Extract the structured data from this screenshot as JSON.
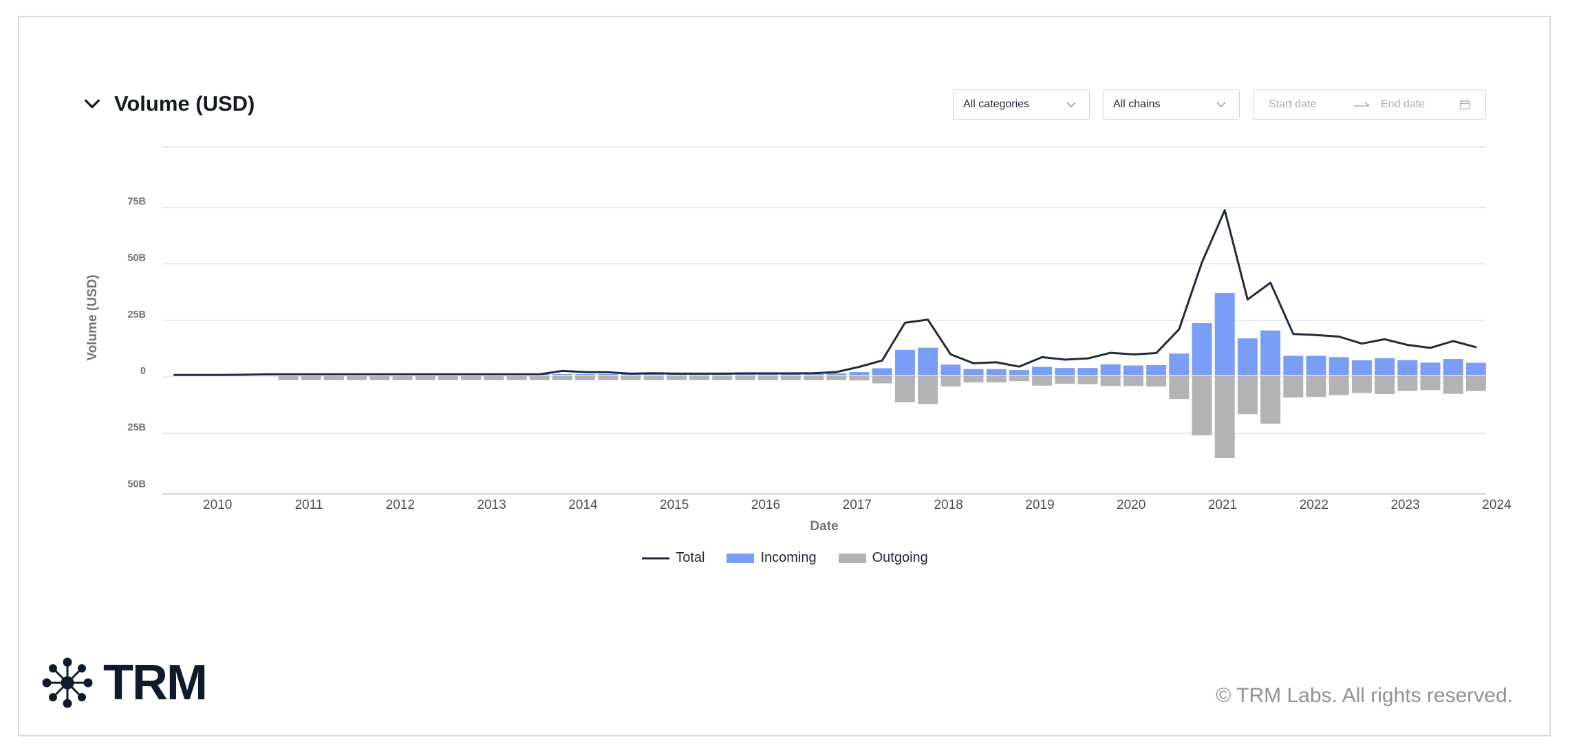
{
  "page": {
    "title": "Volume (USD)",
    "filters": {
      "category": "All categories",
      "chain": "All chains",
      "start_placeholder": "Start date",
      "end_placeholder": "End date"
    },
    "copyright": "© TRM Labs. All rights reserved.",
    "logo_text": "TRM"
  },
  "colors": {
    "incoming": "#7a9ef5",
    "outgoing": "#b3b3b6",
    "total": "#202a38",
    "grid": "#e4e6e9"
  },
  "chart_data": {
    "type": "bar",
    "ylabel": "Volume (USD)",
    "xlabel": "Date",
    "ylim": [
      -50,
      75
    ],
    "ytick_values": [
      75,
      50,
      25,
      0,
      -25,
      -50
    ],
    "ytick_labels": [
      "75B",
      "50B",
      "25B",
      "0",
      "25B",
      "50B"
    ],
    "xtick_labels": [
      "2010",
      "2011",
      "2012",
      "2013",
      "2014",
      "2015",
      "2016",
      "2017",
      "2018",
      "2019",
      "2020",
      "2021",
      "2022",
      "2023",
      "2024"
    ],
    "x_start": 2009.75,
    "x_step": 0.25,
    "legend": [
      "Total",
      "Incoming",
      "Outgoing"
    ],
    "legend_position": "bottom",
    "x": [
      "2009-10",
      "2010-01",
      "2010-04",
      "2010-07",
      "2010-10",
      "2011-01",
      "2011-04",
      "2011-07",
      "2011-10",
      "2012-01",
      "2012-04",
      "2012-07",
      "2012-10",
      "2013-01",
      "2013-04",
      "2013-07",
      "2013-10",
      "2014-01",
      "2014-04",
      "2014-07",
      "2014-10",
      "2015-01",
      "2015-04",
      "2015-07",
      "2015-10",
      "2016-01",
      "2016-04",
      "2016-07",
      "2016-10",
      "2017-01",
      "2017-04",
      "2017-07",
      "2017-10",
      "2018-01",
      "2018-04",
      "2018-07",
      "2018-10",
      "2019-01",
      "2019-04",
      "2019-07",
      "2019-10",
      "2020-01",
      "2020-04",
      "2020-07",
      "2020-10",
      "2021-01",
      "2021-04",
      "2021-07",
      "2021-10",
      "2022-01",
      "2022-04",
      "2022-07",
      "2022-10",
      "2023-01",
      "2023-04",
      "2023-07",
      "2023-10",
      "2024-01"
    ],
    "series": [
      {
        "name": "Incoming",
        "type": "bar",
        "values": [
          0,
          0,
          0,
          0.6,
          0.6,
          0.6,
          0.6,
          0.6,
          0.6,
          0.6,
          0.6,
          0.6,
          0.6,
          0.6,
          0.6,
          0.6,
          0.6,
          0.6,
          0.6,
          0.6,
          0.6,
          0.6,
          0.6,
          0.6,
          0.6,
          0.6,
          0.6,
          0.6,
          0.6,
          0.9,
          1.5,
          3.2,
          11.3,
          12.3,
          4.8,
          2.8,
          2.8,
          2.4,
          3.8,
          3.3,
          3.3,
          4.9,
          4.4,
          4.6,
          9.7,
          23.1,
          36.5,
          16.4,
          19.9,
          8.7,
          8.7,
          8.1,
          6.7,
          7.6,
          6.8,
          5.7,
          7.3,
          5.6
        ]
      },
      {
        "name": "Outgoing",
        "type": "bar",
        "values": [
          0,
          0,
          0,
          0,
          0,
          -1.8,
          -1.8,
          -1.8,
          -1.8,
          -1.8,
          -1.8,
          -1.8,
          -1.8,
          -1.8,
          -1.8,
          -1.8,
          -1.8,
          -1.8,
          -1.8,
          -1.8,
          -1.8,
          -1.8,
          -1.8,
          -1.8,
          -1.8,
          -1.8,
          -1.8,
          -1.8,
          -1.8,
          -1.8,
          -1.9,
          -3.2,
          -11.6,
          -12.4,
          -4.6,
          -2.8,
          -2.8,
          -2.2,
          -4.2,
          -3.4,
          -3.6,
          -4.4,
          -4.4,
          -4.6,
          -10.1,
          -26.2,
          -36.2,
          -16.8,
          -21.1,
          -9.5,
          -9.2,
          -8.4,
          -7.5,
          -7.9,
          -6.5,
          -6.2,
          -7.8,
          -6.6
        ]
      },
      {
        "name": "Total",
        "type": "line",
        "values": [
          0.2,
          0.2,
          0.2,
          0.3,
          0.5,
          0.5,
          0.5,
          0.5,
          0.5,
          0.5,
          0.5,
          0.5,
          0.5,
          0.5,
          0.5,
          0.5,
          0.5,
          2.0,
          1.5,
          1.4,
          0.8,
          1.0,
          0.8,
          0.8,
          0.8,
          0.9,
          0.9,
          0.9,
          1.0,
          1.5,
          3.8,
          6.6,
          23.3,
          24.7,
          9.3,
          5.4,
          5.8,
          3.9,
          8.1,
          7.0,
          7.5,
          10.0,
          9.3,
          9.9,
          20.4,
          50.0,
          73.1,
          33.6,
          41.0,
          18.3,
          17.9,
          17.2,
          14.1,
          16.0,
          13.5,
          12.2,
          15.2,
          12.5
        ]
      }
    ]
  }
}
